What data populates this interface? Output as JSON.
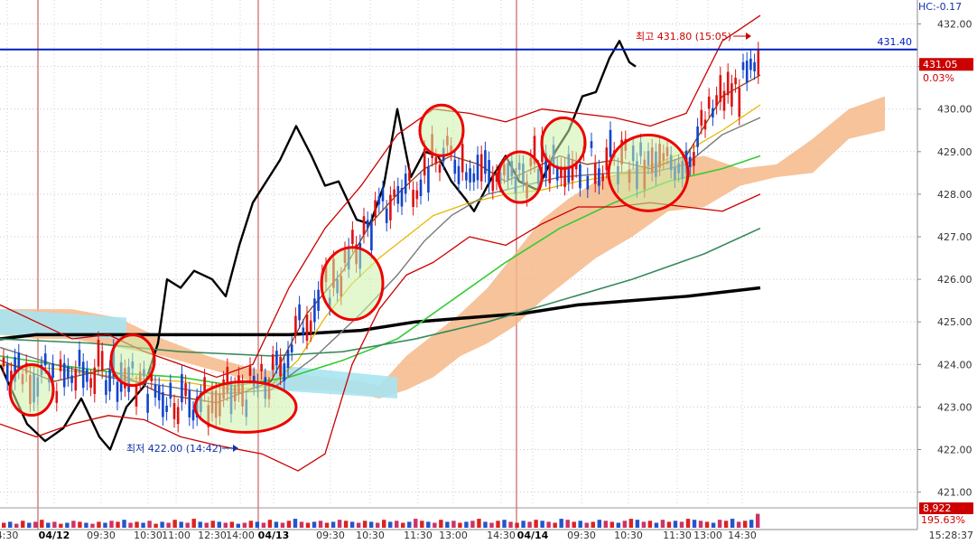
{
  "chart_data": {
    "type": "line",
    "indicator_label": "HC:-0.17",
    "y_ticks": [
      "432.00",
      "431.00",
      "430.00",
      "429.00",
      "428.00",
      "427.00",
      "426.00",
      "425.00",
      "424.00",
      "423.00",
      "422.00",
      "421.00"
    ],
    "ylim": [
      420.7,
      432.4
    ],
    "x_ticks": [
      "4:30",
      "04/12",
      "09:30",
      "10:30",
      "11:00",
      "12:30",
      "14:00",
      "04/13",
      "09:30",
      "10:30",
      "11:30",
      "13:00",
      "14:30",
      "04/14",
      "09:30",
      "10:30",
      "11:30",
      "13:00",
      "14:30"
    ],
    "time_readout": "15:28:37",
    "reference_line": {
      "value": 431.4,
      "label": "431.40",
      "color": "#0020c0"
    },
    "last_price": {
      "label": "431.05",
      "change": "0.03%",
      "color": "#cc0000"
    },
    "high_annotation": {
      "text": "최고 431.80 (15:05)",
      "value": 431.8
    },
    "low_annotation": {
      "text": "최저 422.00 (14:42)",
      "value": 422.0
    },
    "volume_box": {
      "value": "8,922",
      "ratio": "195.63%"
    },
    "series": [
      {
        "color": "#000000",
        "values": [
          [
            0,
            424.6
          ],
          [
            40,
            424.7
          ],
          [
            80,
            424.7
          ],
          [
            120,
            424.7
          ],
          [
            160,
            424.7
          ],
          [
            200,
            424.7
          ],
          [
            260,
            424.7
          ],
          [
            320,
            424.7
          ],
          [
            400,
            424.8
          ],
          [
            460,
            425.0
          ],
          [
            520,
            425.1
          ],
          [
            580,
            425.2
          ],
          [
            640,
            425.4
          ],
          [
            700,
            425.5
          ],
          [
            760,
            425.6
          ],
          [
            842,
            425.8
          ]
        ]
      },
      {
        "color": "#000000",
        "values": [
          [
            0,
            424.0
          ],
          [
            15,
            423.3
          ],
          [
            30,
            422.6
          ],
          [
            50,
            422.2
          ],
          [
            70,
            422.5
          ],
          [
            90,
            423.2
          ],
          [
            110,
            422.3
          ],
          [
            122,
            422.0
          ],
          [
            140,
            423.0
          ],
          [
            160,
            423.5
          ],
          [
            175,
            424.5
          ],
          [
            185,
            426.0
          ],
          [
            200,
            425.8
          ],
          [
            215,
            426.2
          ],
          [
            235,
            426.0
          ],
          [
            250,
            425.6
          ],
          [
            265,
            426.8
          ],
          [
            280,
            427.8
          ],
          [
            295,
            428.3
          ],
          [
            310,
            428.8
          ],
          [
            328,
            429.6
          ],
          [
            345,
            428.9
          ],
          [
            360,
            428.2
          ],
          [
            375,
            428.3
          ],
          [
            395,
            427.4
          ],
          [
            410,
            427.3
          ],
          [
            425,
            428.2
          ],
          [
            440,
            430.0
          ],
          [
            455,
            428.4
          ],
          [
            470,
            429.0
          ],
          [
            485,
            428.9
          ],
          [
            500,
            428.3
          ],
          [
            515,
            427.9
          ],
          [
            525,
            427.6
          ],
          [
            545,
            428.4
          ],
          [
            560,
            428.9
          ],
          [
            575,
            428.3
          ],
          [
            595,
            428.1
          ],
          [
            615,
            429.0
          ],
          [
            630,
            429.5
          ],
          [
            645,
            430.3
          ],
          [
            660,
            430.4
          ],
          [
            675,
            431.2
          ],
          [
            686,
            431.6
          ],
          [
            697,
            431.1
          ],
          [
            704,
            431.0
          ]
        ]
      },
      {
        "color": "#e6b800",
        "values": [
          [
            0,
            424.0
          ],
          [
            60,
            423.9
          ],
          [
            130,
            423.7
          ],
          [
            200,
            423.6
          ],
          [
            260,
            423.4
          ],
          [
            300,
            423.5
          ],
          [
            330,
            424.1
          ],
          [
            360,
            425.1
          ],
          [
            390,
            425.9
          ],
          [
            420,
            426.5
          ],
          [
            450,
            427.0
          ],
          [
            480,
            427.5
          ],
          [
            520,
            427.8
          ],
          [
            560,
            428.0
          ],
          [
            600,
            428.1
          ],
          [
            640,
            428.3
          ],
          [
            700,
            428.5
          ],
          [
            760,
            429.0
          ],
          [
            800,
            429.5
          ],
          [
            842,
            430.1
          ]
        ]
      },
      {
        "color": "#33cc33",
        "values": [
          [
            0,
            424.2
          ],
          [
            60,
            424.0
          ],
          [
            130,
            423.8
          ],
          [
            200,
            423.7
          ],
          [
            260,
            423.5
          ],
          [
            320,
            423.7
          ],
          [
            380,
            424.1
          ],
          [
            440,
            424.6
          ],
          [
            500,
            425.5
          ],
          [
            560,
            426.4
          ],
          [
            620,
            427.2
          ],
          [
            680,
            427.8
          ],
          [
            740,
            428.3
          ],
          [
            800,
            428.6
          ],
          [
            842,
            428.9
          ]
        ]
      },
      {
        "color": "#3a8a5c",
        "values": [
          [
            0,
            424.6
          ],
          [
            100,
            424.5
          ],
          [
            200,
            424.3
          ],
          [
            300,
            424.2
          ],
          [
            380,
            424.3
          ],
          [
            460,
            424.6
          ],
          [
            540,
            425.0
          ],
          [
            620,
            425.5
          ],
          [
            700,
            426.0
          ],
          [
            780,
            426.6
          ],
          [
            842,
            427.2
          ]
        ]
      },
      {
        "color": "#7a7a7a",
        "values": [
          [
            0,
            424.4
          ],
          [
            60,
            424.0
          ],
          [
            120,
            423.7
          ],
          [
            180,
            423.5
          ],
          [
            240,
            423.3
          ],
          [
            300,
            423.4
          ],
          [
            350,
            424.2
          ],
          [
            400,
            425.2
          ],
          [
            440,
            426.1
          ],
          [
            470,
            426.9
          ],
          [
            500,
            427.5
          ],
          [
            540,
            428.0
          ],
          [
            580,
            428.2
          ],
          [
            620,
            428.4
          ],
          [
            680,
            428.5
          ],
          [
            720,
            428.5
          ],
          [
            760,
            428.7
          ],
          [
            800,
            429.4
          ],
          [
            842,
            429.8
          ]
        ]
      },
      {
        "color": "#8b4513",
        "values": [
          [
            0,
            424.1
          ],
          [
            60,
            423.6
          ],
          [
            120,
            423.9
          ],
          [
            180,
            423.3
          ],
          [
            240,
            423.1
          ],
          [
            300,
            423.6
          ],
          [
            340,
            425.2
          ],
          [
            380,
            426.2
          ],
          [
            410,
            427.3
          ],
          [
            440,
            428.0
          ],
          [
            470,
            428.6
          ],
          [
            500,
            428.9
          ],
          [
            530,
            428.7
          ],
          [
            560,
            428.3
          ],
          [
            590,
            428.6
          ],
          [
            620,
            428.9
          ],
          [
            650,
            428.7
          ],
          [
            680,
            428.8
          ],
          [
            720,
            428.6
          ],
          [
            760,
            428.9
          ],
          [
            800,
            430.3
          ],
          [
            842,
            430.8
          ]
        ]
      },
      {
        "color": "#cc0000",
        "values": [
          [
            0,
            425.4
          ],
          [
            40,
            425.0
          ],
          [
            80,
            424.6
          ],
          [
            120,
            424.7
          ],
          [
            160,
            424.3
          ],
          [
            200,
            424.0
          ],
          [
            240,
            423.7
          ],
          [
            280,
            424.0
          ],
          [
            320,
            425.8
          ],
          [
            360,
            427.2
          ],
          [
            400,
            428.2
          ],
          [
            440,
            429.4
          ],
          [
            480,
            430.0
          ],
          [
            520,
            429.9
          ],
          [
            560,
            429.7
          ],
          [
            600,
            430.0
          ],
          [
            640,
            429.9
          ],
          [
            680,
            429.8
          ],
          [
            720,
            429.6
          ],
          [
            760,
            429.9
          ],
          [
            800,
            431.6
          ],
          [
            842,
            432.2
          ]
        ]
      },
      {
        "color": "#cc0000",
        "values": [
          [
            0,
            422.6
          ],
          [
            40,
            422.3
          ],
          [
            80,
            422.6
          ],
          [
            120,
            422.8
          ],
          [
            160,
            422.7
          ],
          [
            200,
            422.3
          ],
          [
            240,
            422.1
          ],
          [
            290,
            421.9
          ],
          [
            330,
            421.5
          ],
          [
            360,
            421.9
          ],
          [
            390,
            424.0
          ],
          [
            420,
            425.3
          ],
          [
            450,
            426.1
          ],
          [
            480,
            426.4
          ],
          [
            520,
            427.0
          ],
          [
            560,
            426.8
          ],
          [
            600,
            427.3
          ],
          [
            640,
            427.7
          ],
          [
            680,
            427.7
          ],
          [
            720,
            427.8
          ],
          [
            760,
            427.7
          ],
          [
            800,
            427.6
          ],
          [
            842,
            428.0
          ]
        ]
      }
    ],
    "cloud": {
      "color": "#f5b88a",
      "alt_color": "#a8e4f2",
      "values": [
        [
          0,
          424.7,
          425.3
        ],
        [
          40,
          424.6,
          425.3
        ],
        [
          80,
          424.6,
          425.3
        ],
        [
          130,
          424.4,
          425.1
        ],
        [
          180,
          424.2,
          424.6
        ],
        [
          230,
          423.9,
          424.2
        ],
        [
          280,
          423.6,
          423.9
        ],
        [
          320,
          423.4,
          423.8
        ],
        [
          360,
          423.4,
          423.7
        ],
        [
          400,
          423.3,
          423.6
        ],
        [
          420,
          423.2,
          423.5
        ],
        [
          450,
          423.4,
          424.2
        ],
        [
          480,
          423.7,
          424.7
        ],
        [
          510,
          424.2,
          425.2
        ],
        [
          540,
          424.5,
          425.8
        ],
        [
          570,
          424.9,
          426.6
        ],
        [
          600,
          425.5,
          427.4
        ],
        [
          630,
          426.0,
          427.9
        ],
        [
          660,
          426.5,
          428.3
        ],
        [
          700,
          427.0,
          428.6
        ],
        [
          740,
          427.6,
          428.8
        ],
        [
          780,
          427.7,
          428.9
        ],
        [
          820,
          428.2,
          428.6
        ],
        [
          860,
          428.4,
          428.7
        ],
        [
          900,
          428.5,
          429.3
        ],
        [
          940,
          429.3,
          430.0
        ],
        [
          980,
          429.5,
          430.3
        ]
      ]
    },
    "circles": [
      [
        35,
        423.4
      ],
      [
        147,
        424.1
      ],
      [
        272,
        423.0
      ],
      [
        390,
        425.9
      ],
      [
        489,
        429.5
      ],
      [
        576,
        428.4
      ],
      [
        624,
        429.2
      ],
      [
        718,
        428.5
      ]
    ],
    "session_lines": [
      42,
      286,
      572
    ],
    "volume_bars": [
      5,
      6,
      4,
      7,
      5,
      6,
      8,
      5,
      6,
      4,
      5,
      7,
      6,
      5,
      4,
      6,
      5,
      7,
      6,
      8,
      5,
      6,
      5,
      7,
      4,
      6,
      5,
      8,
      6,
      5,
      9,
      6,
      5,
      7,
      6,
      5,
      6,
      4,
      5,
      7,
      6,
      5,
      8,
      6,
      5,
      7,
      9,
      6,
      5,
      6,
      7,
      5,
      6,
      8,
      7,
      6,
      5,
      7,
      6,
      5,
      8,
      6,
      7,
      5,
      6,
      9,
      7,
      6,
      5,
      8,
      6,
      7,
      5,
      6,
      7,
      9,
      6,
      5,
      7,
      8,
      6,
      5,
      7,
      6,
      8,
      7,
      6,
      5,
      9,
      8,
      6,
      7,
      5,
      6,
      8,
      7,
      6,
      5,
      7,
      9,
      8,
      6,
      7,
      5,
      8,
      6,
      7,
      6,
      9,
      8,
      7,
      6,
      5,
      8,
      7,
      9,
      6,
      7,
      8,
      14
    ]
  }
}
